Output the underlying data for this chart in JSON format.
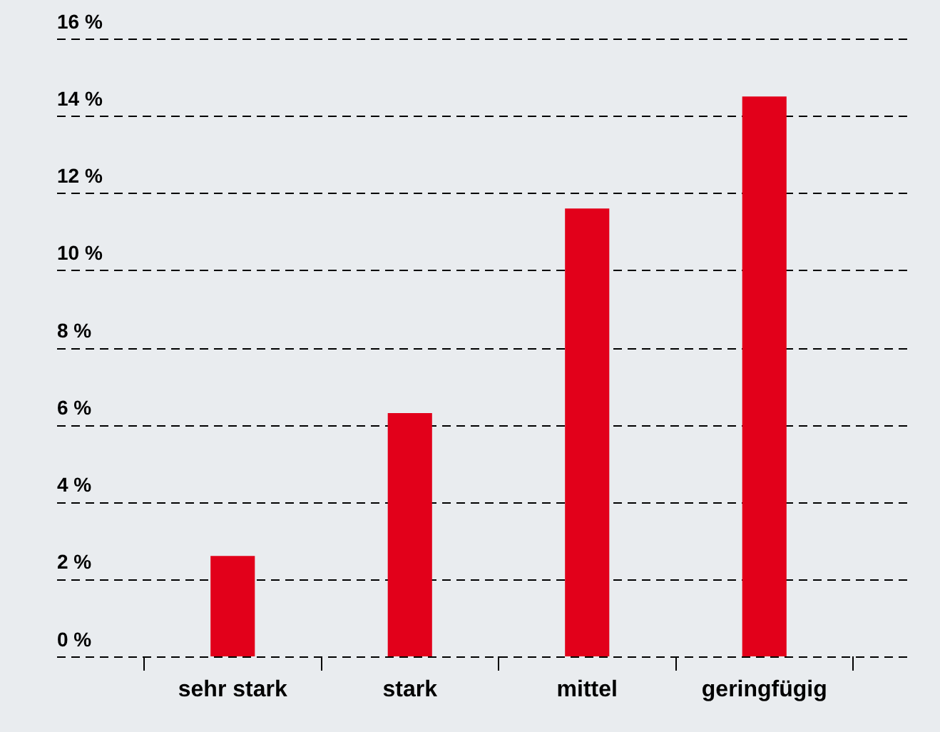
{
  "chart_data": {
    "type": "bar",
    "categories": [
      "sehr stark",
      "stark",
      "mittel",
      "geringfügig"
    ],
    "values": [
      2.6,
      6.3,
      11.6,
      14.5
    ],
    "color": "#e2001a",
    "ylim": [
      0,
      16
    ],
    "yticks": [
      {
        "value": 0,
        "label": "0 %"
      },
      {
        "value": 2,
        "label": "2 %"
      },
      {
        "value": 4,
        "label": "4 %"
      },
      {
        "value": 6,
        "label": "6 %"
      },
      {
        "value": 8,
        "label": "8 %"
      },
      {
        "value": 10,
        "label": "10 %"
      },
      {
        "value": 12,
        "label": "12 %"
      },
      {
        "value": 14,
        "label": "14 %"
      },
      {
        "value": 16,
        "label": "16 %"
      }
    ],
    "grid": "y",
    "legend": false,
    "line_style": "dashed"
  }
}
